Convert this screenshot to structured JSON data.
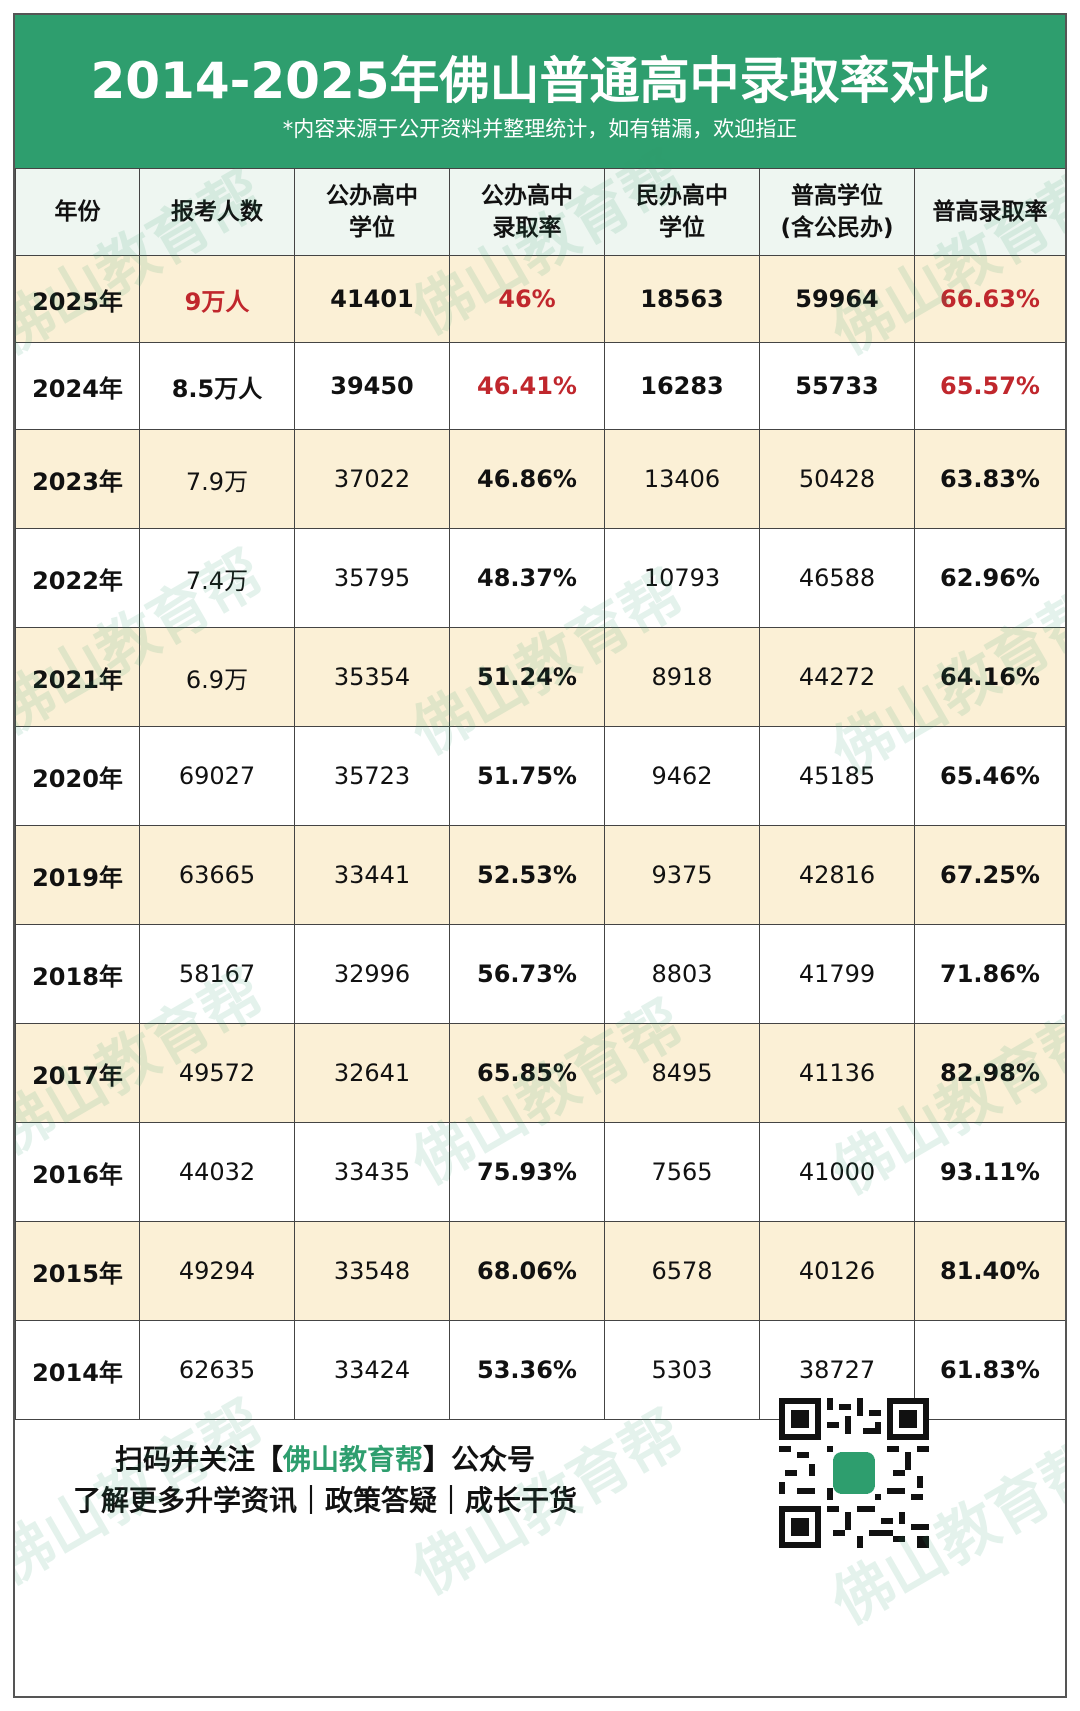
{
  "header": {
    "title": "2014-2025年佛山普通高中录取率对比",
    "subtitle": "*内容来源于公开资料并整理统计，如有错漏，欢迎指正"
  },
  "table": {
    "columns": [
      "年份",
      "报考人数",
      "公办高中\n学位",
      "公办高中\n录取率",
      "民办高中\n学位",
      "普高学位\n(含公民办)",
      "普高录取率"
    ],
    "rows": [
      [
        "2025年",
        "9万人",
        "41401",
        "46%",
        "18563",
        "59964",
        "66.63%"
      ],
      [
        "2024年",
        "8.5万人",
        "39450",
        "46.41%",
        "16283",
        "55733",
        "65.57%"
      ],
      [
        "2023年",
        "7.9万",
        "37022",
        "46.86%",
        "13406",
        "50428",
        "63.83%"
      ],
      [
        "2022年",
        "7.4万",
        "35795",
        "48.37%",
        "10793",
        "46588",
        "62.96%"
      ],
      [
        "2021年",
        "6.9万",
        "35354",
        "51.24%",
        "8918",
        "44272",
        "64.16%"
      ],
      [
        "2020年",
        "69027",
        "35723",
        "51.75%",
        "9462",
        "45185",
        "65.46%"
      ],
      [
        "2019年",
        "63665",
        "33441",
        "52.53%",
        "9375",
        "42816",
        "67.25%"
      ],
      [
        "2018年",
        "58167",
        "32996",
        "56.73%",
        "8803",
        "41799",
        "71.86%"
      ],
      [
        "2017年",
        "49572",
        "32641",
        "65.85%",
        "8495",
        "41136",
        "82.98%"
      ],
      [
        "2016年",
        "44032",
        "33435",
        "75.93%",
        "7565",
        "41000",
        "93.11%"
      ],
      [
        "2015年",
        "49294",
        "33548",
        "68.06%",
        "6578",
        "40126",
        "81.40%"
      ],
      [
        "2014年",
        "62635",
        "33424",
        "53.36%",
        "5303",
        "38727",
        "61.83%"
      ]
    ]
  },
  "footer": {
    "line1_pre": "扫码并关注【",
    "line1_brand": "佛山教育帮",
    "line1_post": "】公众号",
    "line2": "了解更多升学资讯｜政策答疑｜成长干货"
  },
  "watermark": "佛山教育帮",
  "colors": {
    "header_green": "#2e9e6e",
    "row_highlight": "#fbf0d6",
    "red_text": "#c0272d"
  }
}
